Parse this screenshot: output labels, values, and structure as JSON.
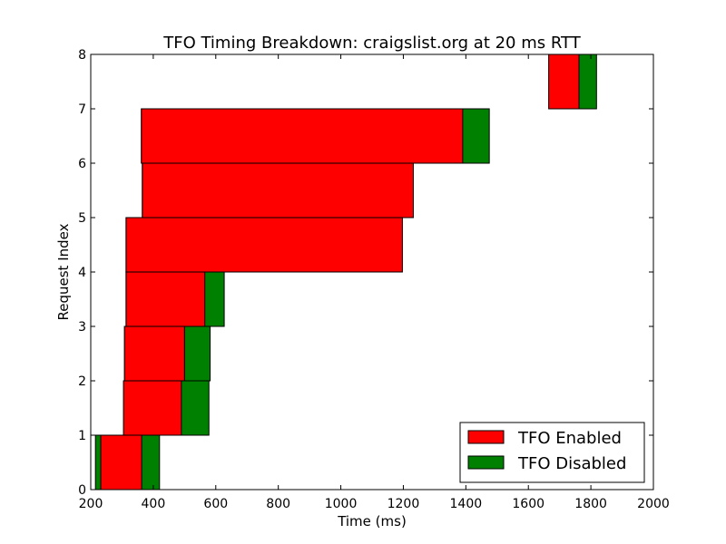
{
  "chart_data": {
    "type": "bar",
    "orientation": "horizontal-floating",
    "title": "TFO Timing Breakdown: craigslist.org at 20 ms RTT",
    "xlabel": "Time (ms)",
    "ylabel": "Request Index",
    "xlim": [
      200,
      2000
    ],
    "ylim": [
      0,
      8
    ],
    "xticks": [
      "200",
      "400",
      "600",
      "800",
      "1000",
      "1200",
      "1400",
      "1600",
      "1800",
      "2000"
    ],
    "yticks": [
      "0",
      "1",
      "2",
      "3",
      "4",
      "5",
      "6",
      "7",
      "8"
    ],
    "grid": false,
    "legend_position": "lower-right",
    "series": [
      {
        "name": "TFO Disabled",
        "color": "#008000",
        "bars": [
          {
            "index": 0,
            "start": 215,
            "end": 420
          },
          {
            "index": 1,
            "start": 305,
            "end": 578
          },
          {
            "index": 2,
            "start": 308,
            "end": 582
          },
          {
            "index": 3,
            "start": 313,
            "end": 627
          },
          {
            "index": 4,
            "start": 313,
            "end": 700
          },
          {
            "index": 5,
            "start": 365,
            "end": 1140
          },
          {
            "index": 6,
            "start": 362,
            "end": 1475
          },
          {
            "index": 7,
            "start": 1720,
            "end": 1818
          }
        ]
      },
      {
        "name": "TFO Enabled",
        "color": "#ff0000",
        "bars": [
          {
            "index": 0,
            "start": 232,
            "end": 363
          },
          {
            "index": 1,
            "start": 305,
            "end": 490
          },
          {
            "index": 2,
            "start": 308,
            "end": 500
          },
          {
            "index": 3,
            "start": 313,
            "end": 565
          },
          {
            "index": 4,
            "start": 313,
            "end": 1197
          },
          {
            "index": 5,
            "start": 365,
            "end": 1232
          },
          {
            "index": 6,
            "start": 362,
            "end": 1390
          },
          {
            "index": 7,
            "start": 1665,
            "end": 1762
          }
        ]
      }
    ]
  }
}
